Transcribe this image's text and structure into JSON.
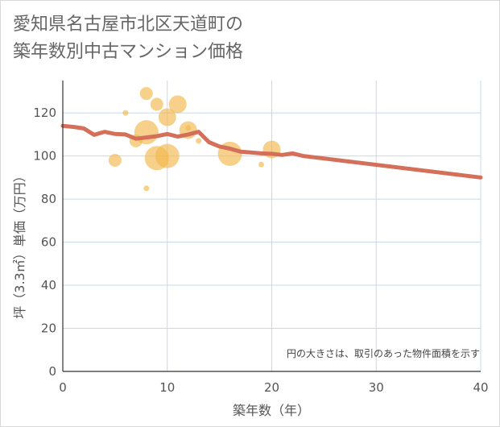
{
  "title_lines": [
    "愛知県名古屋市北区天道町の",
    "築年数別中古マンション価格"
  ],
  "chart_data": {
    "type": "scatter",
    "title": "愛知県名古屋市北区天道町の築年数別中古マンション価格",
    "xlabel": "築年数（年）",
    "ylabel": "坪（3.3㎡）単価（万円）",
    "xlim": [
      0,
      40
    ],
    "ylim": [
      0,
      135
    ],
    "x_ticks": [
      0,
      10,
      20,
      30,
      40
    ],
    "y_ticks": [
      0,
      20,
      40,
      60,
      80,
      100,
      120
    ],
    "grid": true,
    "note": "円の大きさは、取引のあった物件面積を示す",
    "colors": {
      "bubble": "#f2b84d",
      "line": "#d4705a",
      "grid": "#c8d8ea",
      "axis": "#333333"
    },
    "bubbles": [
      {
        "x": 5,
        "y": 98,
        "size": 2
      },
      {
        "x": 6,
        "y": 120,
        "size": 1
      },
      {
        "x": 7,
        "y": 107,
        "size": 2
      },
      {
        "x": 8,
        "y": 129,
        "size": 2
      },
      {
        "x": 8,
        "y": 111,
        "size": 4
      },
      {
        "x": 8,
        "y": 85,
        "size": 1
      },
      {
        "x": 9,
        "y": 124,
        "size": 2
      },
      {
        "x": 9,
        "y": 99,
        "size": 4
      },
      {
        "x": 10,
        "y": 118,
        "size": 3
      },
      {
        "x": 10,
        "y": 100,
        "size": 4
      },
      {
        "x": 11,
        "y": 124,
        "size": 3
      },
      {
        "x": 12,
        "y": 113,
        "size": 1
      },
      {
        "x": 12,
        "y": 112,
        "size": 3
      },
      {
        "x": 13,
        "y": 107,
        "size": 1
      },
      {
        "x": 16,
        "y": 101,
        "size": 4
      },
      {
        "x": 19,
        "y": 96,
        "size": 1
      },
      {
        "x": 20,
        "y": 103,
        "size": 3
      }
    ],
    "series": [
      {
        "name": "平均",
        "x": [
          0,
          1,
          2,
          3,
          4,
          5,
          6,
          7,
          8,
          9,
          10,
          11,
          12,
          13,
          14,
          15,
          16,
          17,
          18,
          19,
          20,
          21,
          22,
          23,
          40
        ],
        "values": [
          114,
          113.5,
          112.8,
          109.8,
          111.2,
          110.2,
          110,
          108,
          108.6,
          109.2,
          110.2,
          109,
          110,
          111.2,
          106.4,
          104.4,
          103.4,
          102,
          101.6,
          101.2,
          101,
          100.5,
          101.2,
          100,
          90
        ]
      }
    ]
  }
}
